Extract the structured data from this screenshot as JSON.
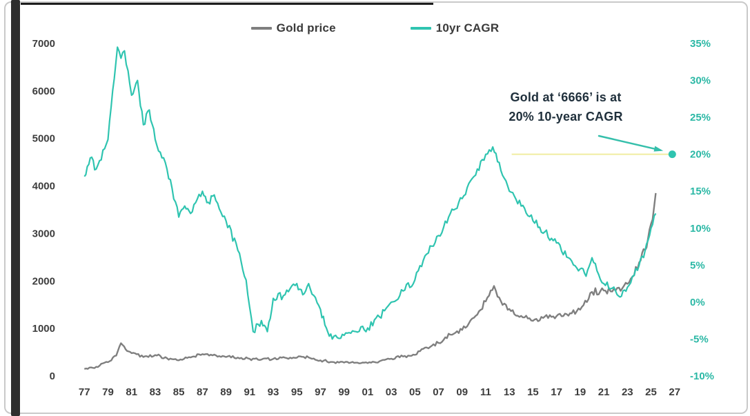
{
  "legend": {
    "items": [
      {
        "label": "Gold price",
        "color": "#7f7f7f"
      },
      {
        "label": "10yr CAGR",
        "color": "#2fc4b0"
      }
    ]
  },
  "annotation": {
    "line1": "Gold at ‘6666’ is at",
    "line2": "20% 10-year CAGR"
  },
  "colors": {
    "gold_line": "#7f7f7f",
    "cagr_line": "#2fc4b0",
    "right_axis_text": "#2bb8a5",
    "axis_text": "#3d3d3d",
    "annotation_text": "#20303c",
    "reference_line": "#f0eda0",
    "marker": "#2fc4b0",
    "arrow": "#35bfab",
    "frame_border": "#c9c9c9",
    "left_bar": "#2e2e2e",
    "top_line": "#1c1c1c"
  },
  "chart_data": {
    "type": "line",
    "title": "",
    "grid": false,
    "legend_position": "top",
    "x_axis": {
      "years": [
        1977,
        1979,
        1981,
        1983,
        1985,
        1987,
        1989,
        1991,
        1993,
        1995,
        1997,
        1999,
        2001,
        2003,
        2005,
        2007,
        2009,
        2011,
        2013,
        2015,
        2017,
        2019,
        2021,
        2023,
        2025,
        2027
      ],
      "labels": [
        "77",
        "79",
        "81",
        "83",
        "85",
        "87",
        "89",
        "91",
        "93",
        "95",
        "97",
        "99",
        "01",
        "03",
        "05",
        "07",
        "09",
        "11",
        "13",
        "15",
        "17",
        "19",
        "21",
        "23",
        "25",
        "27"
      ],
      "range": [
        1976.4,
        2027.6
      ]
    },
    "left_axis": {
      "series": "Gold price",
      "min": 0,
      "max": 7000,
      "ticks": [
        0,
        1000,
        2000,
        3000,
        4000,
        5000,
        6000,
        7000
      ],
      "labels": [
        "0",
        "1000",
        "2000",
        "3000",
        "4000",
        "5000",
        "6000",
        "7000"
      ]
    },
    "right_axis": {
      "series": "10yr CAGR",
      "min": -10,
      "max": 35,
      "ticks": [
        -10,
        -5,
        0,
        5,
        10,
        15,
        20,
        25,
        30,
        35
      ],
      "labels": [
        "-10%",
        "-5%",
        "0%",
        "5%",
        "10%",
        "15%",
        "20%",
        "25%",
        "30%",
        "35%"
      ]
    },
    "series": [
      {
        "name": "Gold price",
        "axis": "left",
        "color": "#7f7f7f",
        "x": [
          1977,
          1978,
          1979,
          1979.7,
          1980.1,
          1980.5,
          1981,
          1982,
          1983,
          1984,
          1985,
          1986,
          1987,
          1988,
          1989,
          1990,
          1991,
          1992,
          1993,
          1994,
          1995,
          1996,
          1997,
          1998,
          1999,
          2000,
          2001,
          2002,
          2003,
          2004,
          2005,
          2006,
          2007,
          2008,
          2009,
          2010,
          2011,
          2011.7,
          2012,
          2013,
          2014,
          2015,
          2016,
          2017,
          2018,
          2019,
          2020,
          2021,
          2022,
          2023,
          2024,
          2024.5,
          2025,
          2025.4
        ],
        "values": [
          148,
          193,
          290,
          430,
          690,
          560,
          480,
          400,
          440,
          375,
          330,
          390,
          460,
          450,
          400,
          388,
          362,
          345,
          360,
          385,
          385,
          390,
          330,
          295,
          282,
          280,
          272,
          310,
          365,
          410,
          445,
          600,
          695,
          870,
          970,
          1225,
          1570,
          1895,
          1670,
          1410,
          1265,
          1160,
          1250,
          1260,
          1270,
          1395,
          1770,
          1800,
          1800,
          1940,
          2390,
          2650,
          3200,
          3850
        ]
      },
      {
        "name": "10yr CAGR",
        "axis": "right",
        "color": "#2fc4b0",
        "x": [
          1977,
          1977.5,
          1978,
          1979,
          1979.8,
          1980.1,
          1980.4,
          1981,
          1981.5,
          1982,
          1982.5,
          1983,
          1984,
          1985,
          1985.5,
          1986,
          1987,
          1987.5,
          1988,
          1989,
          1990,
          1990.7,
          1991.3,
          1992,
          1992.5,
          1993,
          1994,
          1995,
          1995.5,
          1996,
          1997,
          1997.5,
          1998,
          1999,
          2000,
          2001,
          2002,
          2003,
          2004,
          2005,
          2006,
          2007,
          2008,
          2009,
          2010,
          2011,
          2011.6,
          2012,
          2013,
          2014,
          2015,
          2016,
          2017,
          2018,
          2019,
          2019.5,
          2020,
          2021,
          2022,
          2022.5,
          2023,
          2024,
          2024.5,
          2025,
          2025.4
        ],
        "values": [
          17,
          19.5,
          18,
          22,
          34.5,
          33,
          34,
          28,
          30,
          24,
          26,
          22,
          18,
          11.5,
          13,
          12,
          15,
          13.5,
          14.5,
          11,
          7,
          3,
          -4,
          -2.5,
          -4,
          0.5,
          1,
          2.5,
          1,
          2.5,
          -1,
          -3.5,
          -5,
          -4.5,
          -4,
          -3.5,
          -2,
          0,
          1.5,
          3,
          6.5,
          9,
          12,
          14,
          17,
          20,
          21,
          19,
          15,
          13,
          11,
          9.5,
          8,
          6,
          4.5,
          3.5,
          6,
          2.5,
          1.5,
          0.8,
          2,
          5,
          7,
          10,
          12
        ]
      }
    ],
    "reference_line": {
      "axis": "right",
      "value": 20,
      "x_start": 2013.2,
      "x_end": 2026.8,
      "color": "#f0eda0"
    },
    "marker": {
      "axis": "right",
      "x": 2026.8,
      "value": 20,
      "color": "#2fc4b0"
    }
  }
}
